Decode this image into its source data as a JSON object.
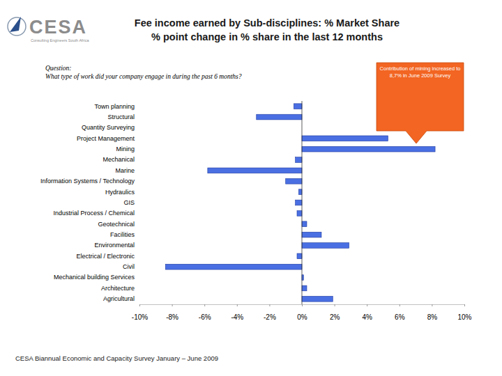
{
  "chart_data": {
    "type": "bar",
    "orientation": "horizontal",
    "title": "Fee income earned by Sub-disciplines: % Market Share",
    "subtitle": "% point change in % share in the last 12 months",
    "logo": [
      "CESA",
      "Consulting Engineers South Africa"
    ],
    "annotations": [
      "Question:",
      "What type of work did your company engage in during the past 6 months?",
      "Contribution of mining increased to 8,7% in June 2009 Survey"
    ],
    "source": "CESA Biannual Economic and Capacity Survey January – June 2009",
    "categories": [
      "Town planning",
      "Structural",
      "Quantity Surveying",
      "Project Management",
      "Mining",
      "Mechanical",
      "Marine",
      "Information Systems / Technology",
      "Hydraulics",
      "GIS",
      "Industrial Process / Chemical",
      "Geotechnical",
      "Facilities",
      "Environmental",
      "Electrical / Electronic",
      "Civil",
      "Mechanical building Services",
      "Architecture",
      "Agricultural"
    ],
    "values": [
      -0.5,
      -2.8,
      0,
      5.3,
      8.2,
      -0.4,
      -5.8,
      -1.0,
      -0.2,
      -0.4,
      -0.3,
      0.3,
      1.2,
      2.9,
      -0.3,
      -8.4,
      0.1,
      0.3,
      1.9
    ],
    "color": "#4a6fe3",
    "xlim": [
      -10,
      10
    ],
    "xticks": [
      {
        "value": -10,
        "label": "-10%"
      },
      {
        "value": -8,
        "label": "-8%"
      },
      {
        "value": -6,
        "label": "-6%"
      },
      {
        "value": -4,
        "label": "-4%"
      },
      {
        "value": -2,
        "label": "-2%"
      },
      {
        "value": 0,
        "label": "0%"
      },
      {
        "value": 2,
        "label": "2%"
      },
      {
        "value": 4,
        "label": "4%"
      },
      {
        "value": 6,
        "label": "6%"
      },
      {
        "value": 8,
        "label": "8%"
      },
      {
        "value": 10,
        "label": "10%"
      }
    ],
    "grid": false
  }
}
